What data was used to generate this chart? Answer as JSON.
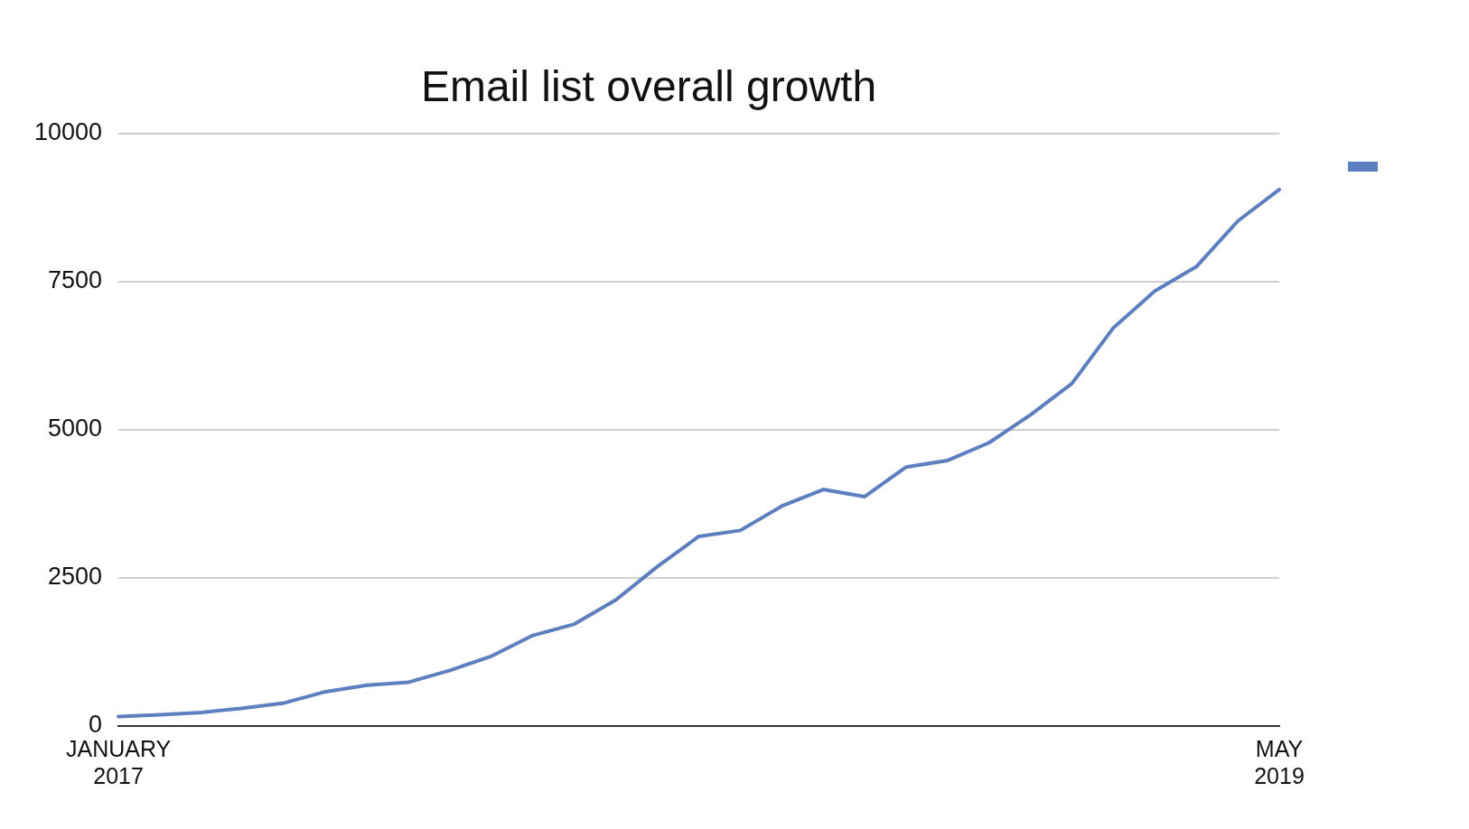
{
  "chart_data": {
    "type": "line",
    "title": "Email list overall growth",
    "categories": [
      "JANUARY\n2017",
      null,
      null,
      null,
      null,
      null,
      null,
      null,
      null,
      null,
      null,
      null,
      null,
      null,
      null,
      null,
      null,
      null,
      null,
      null,
      null,
      null,
      null,
      null,
      null,
      null,
      null,
      null,
      "MAY\n2019"
    ],
    "series": [
      {
        "color": "#5b7fbf",
        "values": [
          160,
          190,
          230,
          300,
          390,
          580,
          690,
          740,
          940,
          1180,
          1530,
          1720,
          2130,
          2690,
          3200,
          3300,
          3710,
          3990,
          3870,
          4370,
          4480,
          4780,
          5250,
          5780,
          6720,
          7340,
          7750,
          8520,
          9050
        ]
      }
    ],
    "ylim": [
      0,
      10000
    ],
    "yticks": [
      0,
      2500,
      5000,
      7500,
      10000
    ],
    "grid": "y",
    "marker": "none",
    "line_style": "solid"
  }
}
